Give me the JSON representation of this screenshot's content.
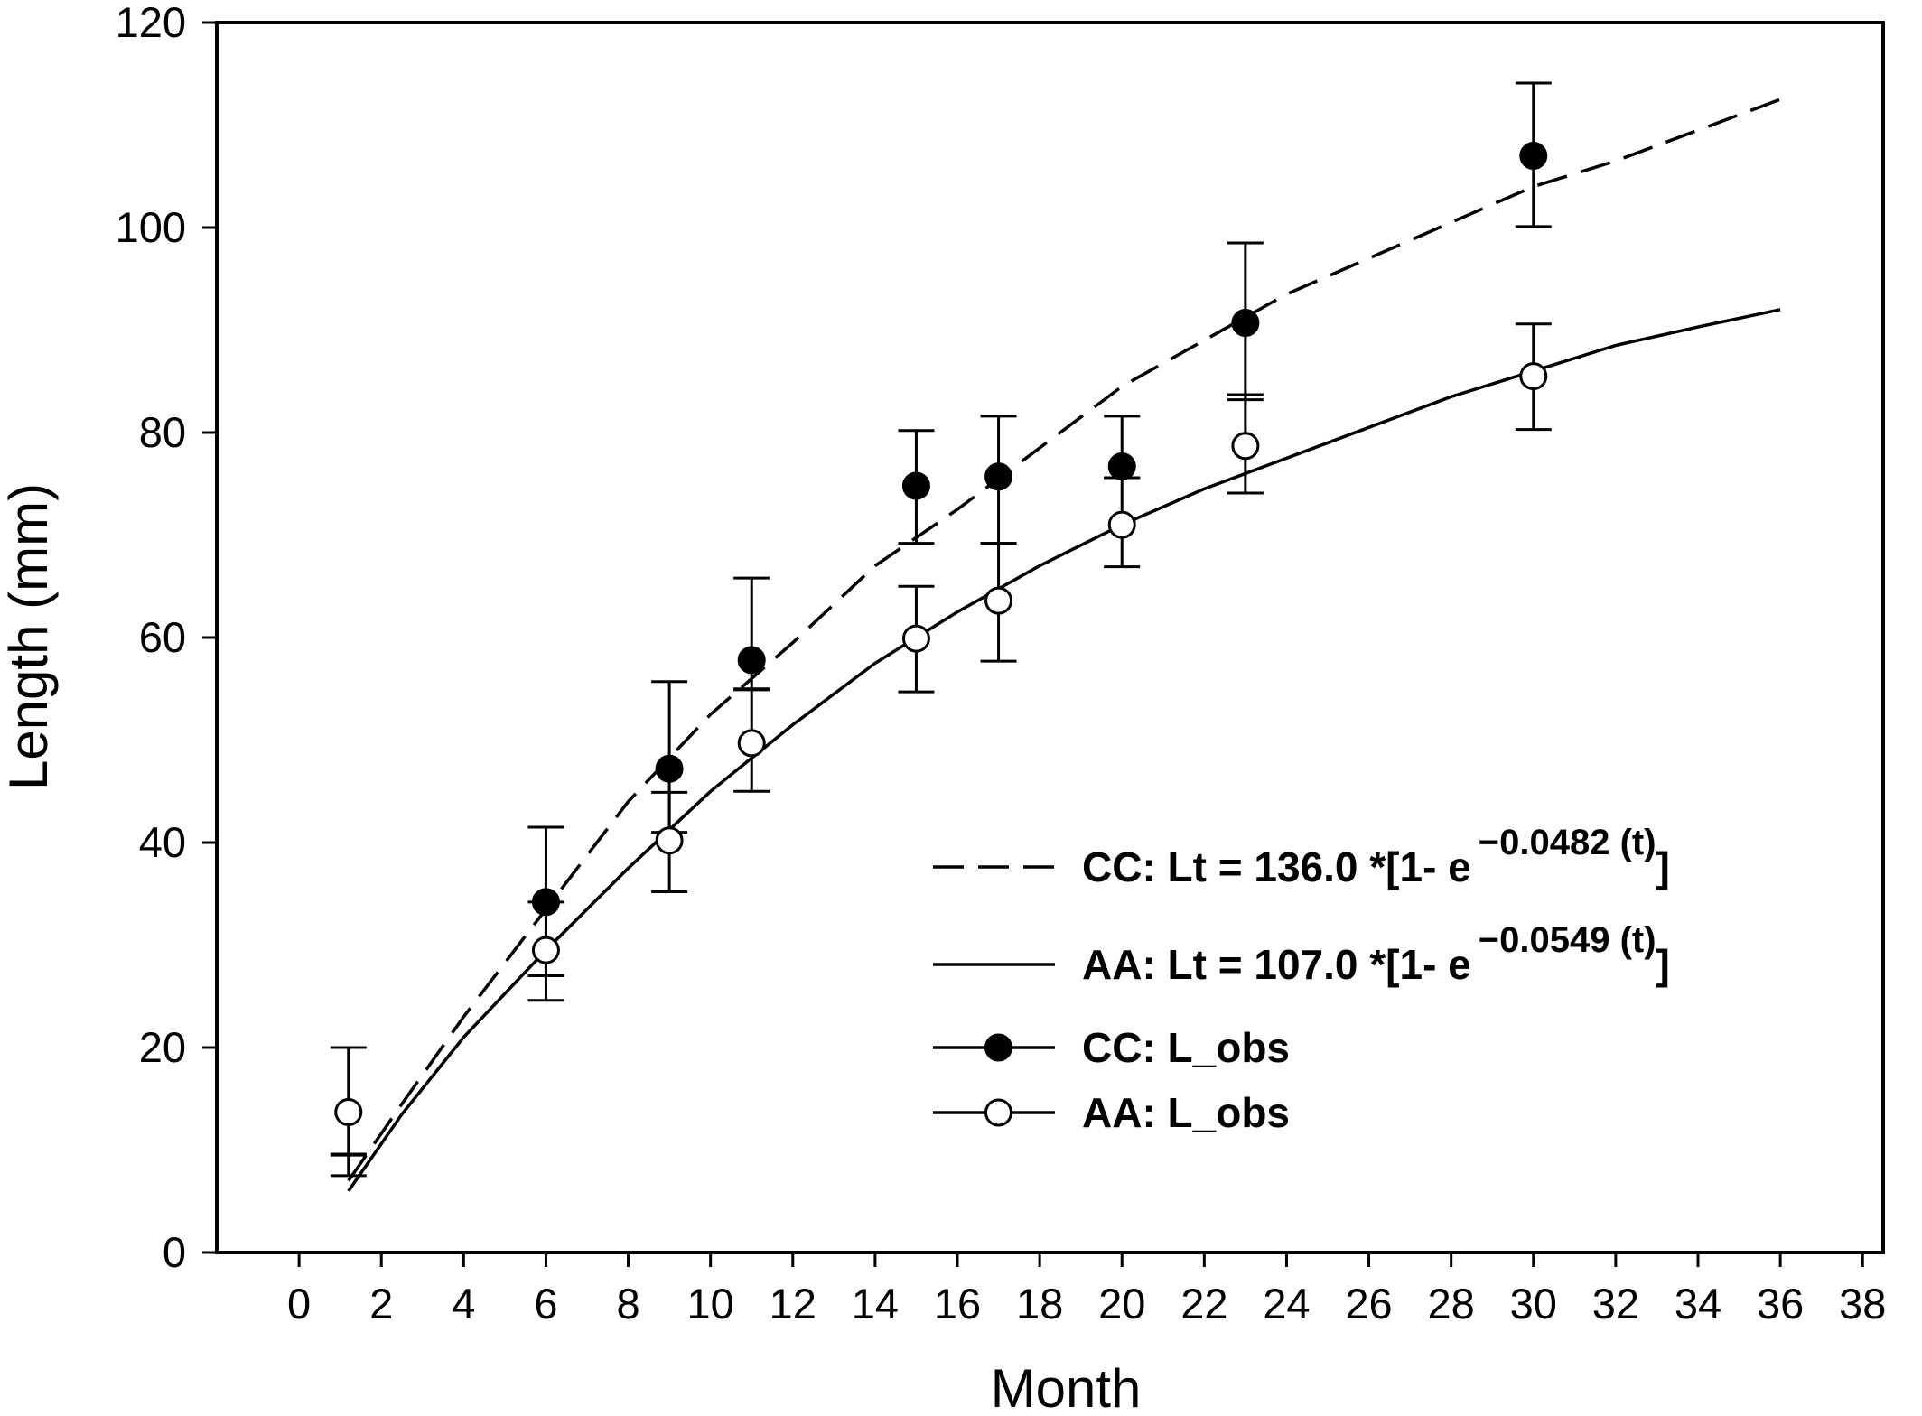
{
  "chart_data": {
    "type": "line",
    "title": "",
    "xlabel": "Month",
    "ylabel": "Length (mm)",
    "xlim": [
      -2,
      38.5
    ],
    "ylim": [
      0,
      120
    ],
    "xticks": [
      0,
      2,
      4,
      6,
      8,
      10,
      12,
      14,
      16,
      18,
      20,
      22,
      24,
      26,
      28,
      30,
      32,
      34,
      36,
      38
    ],
    "yticks": [
      0,
      20,
      40,
      60,
      80,
      100,
      120
    ],
    "grid": false,
    "legend_position": "bottom-right",
    "fitted_curves": [
      {
        "key": "cc-fit",
        "style": "dashed",
        "label_prefix": "CC: Lt = 136.0 *[1- e",
        "label_exp": "−0.0482 (t)",
        "label_suffix": "]",
        "x": [
          1.2,
          2.5,
          4,
          6,
          8,
          10,
          12,
          14,
          16,
          18,
          20,
          22,
          24,
          26,
          28,
          30,
          32,
          34,
          36
        ],
        "y": [
          7,
          14.5,
          23,
          33.5,
          44,
          52.5,
          59.5,
          67,
          72.5,
          78.5,
          84.5,
          89,
          93.5,
          97,
          100.5,
          104,
          106.5,
          109.5,
          112.5
        ]
      },
      {
        "key": "aa-fit",
        "style": "solid",
        "label_prefix": "AA: Lt = 107.0 *[1- e",
        "label_exp": "−0.0549 (t)",
        "label_suffix": "]",
        "x": [
          1.2,
          2.5,
          4,
          6,
          8,
          10,
          12,
          14,
          16,
          18,
          20,
          22,
          24,
          26,
          28,
          30,
          32,
          34,
          36
        ],
        "y": [
          6,
          13.5,
          21,
          29.5,
          37.5,
          45,
          51.5,
          57.5,
          62.5,
          67,
          71,
          74.5,
          77.5,
          80.5,
          83.5,
          86,
          88.5,
          90.3,
          92
        ]
      }
    ],
    "observations": [
      {
        "key": "cc-obs",
        "label": "CC:  L_obs",
        "marker": "filled-circle",
        "points": [
          {
            "x": 1.2,
            "y": 8.5,
            "err_low": 7.5,
            "err_high": 9.5,
            "marker": false
          },
          {
            "x": 6,
            "y": 34.2,
            "err_low": 27,
            "err_high": 41.5
          },
          {
            "x": 9,
            "y": 47.2,
            "err_low": 41,
            "err_high": 55.7
          },
          {
            "x": 11,
            "y": 57.8,
            "err_low": 55,
            "err_high": 65.8
          },
          {
            "x": 15,
            "y": 74.8,
            "err_low": 69.2,
            "err_high": 80.2
          },
          {
            "x": 17,
            "y": 75.7,
            "err_low": 69.2,
            "err_high": 81.6
          },
          {
            "x": 20,
            "y": 76.7,
            "err_low": 75.6,
            "err_high": 81.6
          },
          {
            "x": 23,
            "y": 90.7,
            "err_low": 83.2,
            "err_high": 98.5
          },
          {
            "x": 30,
            "y": 107,
            "err_low": 100.1,
            "err_high": 114.1
          }
        ]
      },
      {
        "key": "aa-obs",
        "label": "AA:  L_obs",
        "marker": "open-circle",
        "points": [
          {
            "x": 1.2,
            "y": 13.7,
            "err_low": 9.6,
            "err_high": 20
          },
          {
            "x": 6,
            "y": 29.5,
            "err_low": 24.6,
            "err_high": 34.2
          },
          {
            "x": 9,
            "y": 40.2,
            "err_low": 35.2,
            "err_high": 44.9
          },
          {
            "x": 11,
            "y": 49.7,
            "err_low": 45,
            "err_high": 54.9
          },
          {
            "x": 15,
            "y": 59.9,
            "err_low": 54.7,
            "err_high": 65
          },
          {
            "x": 17,
            "y": 63.6,
            "err_low": 57.7,
            "err_high": 69.2
          },
          {
            "x": 20,
            "y": 71,
            "err_low": 66.9,
            "err_high": 75.6
          },
          {
            "x": 23,
            "y": 78.7,
            "err_low": 74.1,
            "err_high": 83.7
          },
          {
            "x": 30,
            "y": 85.5,
            "err_low": 80.3,
            "err_high": 90.6
          }
        ]
      }
    ],
    "colors": {
      "axis": "#000000",
      "marker_fill_cc": "#000000",
      "marker_fill_aa": "#ffffff"
    }
  }
}
